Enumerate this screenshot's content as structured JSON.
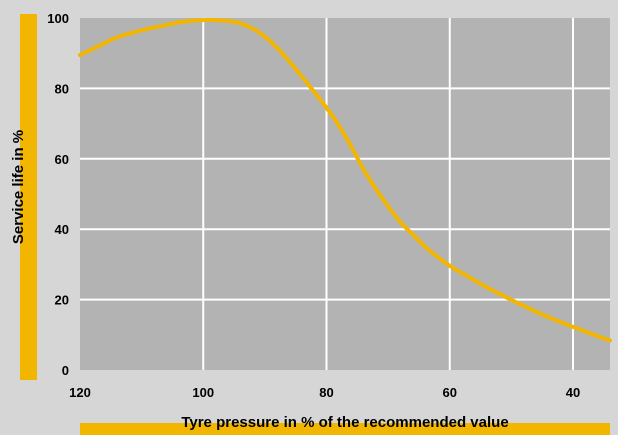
{
  "chart_data": {
    "type": "line",
    "title": "",
    "xlabel": "Tyre pressure in % of the recommended value",
    "ylabel": "Service life in %",
    "xlim": [
      120,
      34
    ],
    "ylim": [
      0,
      100
    ],
    "x_reversed": true,
    "x_ticks": [
      "120",
      "100",
      "80",
      "60",
      "40"
    ],
    "x_tick_values": [
      120,
      100,
      80,
      60,
      40
    ],
    "y_ticks": [
      "0",
      "20",
      "40",
      "60",
      "80",
      "100"
    ],
    "y_tick_values": [
      0,
      20,
      40,
      60,
      80,
      100
    ],
    "grid": true,
    "series": [
      {
        "x": [
          120,
          117,
          114,
          110,
          106,
          103,
          100,
          97,
          94,
          91,
          88,
          85,
          82,
          80,
          78,
          76,
          74,
          72,
          70,
          68,
          66,
          64,
          62,
          60,
          57,
          54,
          51,
          48,
          45,
          42,
          39,
          36,
          34
        ],
        "y": [
          89.5,
          92,
          94.5,
          96.5,
          98,
          99,
          99.4,
          99.3,
          98.5,
          96,
          91.5,
          85.5,
          79,
          74.5,
          69.5,
          63.5,
          57,
          51.5,
          46.5,
          42,
          38.5,
          35,
          32.2,
          29.6,
          26.5,
          23.5,
          20.8,
          18.2,
          15.8,
          13.6,
          11.6,
          9.6,
          8.4
        ]
      }
    ],
    "colors": {
      "background": "#d6d6d6",
      "plot_area": "#b3b3b3",
      "grid": "#ffffff",
      "line": "#f2b600",
      "accent_bar": "#f2b600"
    }
  }
}
